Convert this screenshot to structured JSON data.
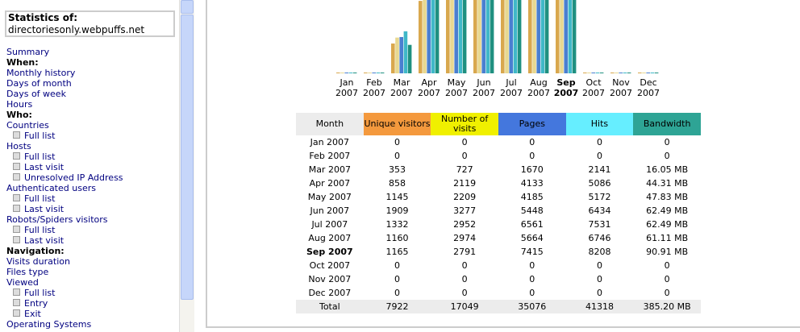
{
  "sidebar": {
    "stats_label": "Statistics of:",
    "site": "directoriesonly.webpuffs.net",
    "items": [
      {
        "link": "Summary"
      },
      {
        "heading": "When:"
      },
      {
        "link": "Monthly history"
      },
      {
        "link": "Days of month"
      },
      {
        "link": "Days of week"
      },
      {
        "link": "Hours"
      },
      {
        "heading": "Who:"
      },
      {
        "link": "Countries"
      },
      {
        "sublink": "Full list"
      },
      {
        "link": "Hosts"
      },
      {
        "sublink": "Full list"
      },
      {
        "sublink": "Last visit"
      },
      {
        "sublink": "Unresolved IP Address"
      },
      {
        "link": "Authenticated users"
      },
      {
        "sublink": "Full list"
      },
      {
        "sublink": "Last visit"
      },
      {
        "link": "Robots/Spiders visitors"
      },
      {
        "sublink": "Full list"
      },
      {
        "sublink": "Last visit"
      },
      {
        "heading": "Navigation:"
      },
      {
        "link": "Visits duration"
      },
      {
        "link": "Files type"
      },
      {
        "link": "Viewed"
      },
      {
        "sublink": "Full list"
      },
      {
        "sublink": "Entry"
      },
      {
        "sublink": "Exit"
      },
      {
        "link": "Operating Systems"
      }
    ]
  },
  "chart_data": {
    "type": "bar",
    "highlight": 8,
    "categories": [
      "Jan 2007",
      "Feb 2007",
      "Mar 2007",
      "Apr 2007",
      "May 2007",
      "Jun 2007",
      "Jul 2007",
      "Aug 2007",
      "Sep 2007",
      "Oct 2007",
      "Nov 2007",
      "Dec 2007"
    ],
    "series": [
      {
        "name": "Unique visitors",
        "color": "#d9a84e",
        "header_color": "#f4993d",
        "values": [
          0,
          0,
          353,
          858,
          1145,
          1909,
          1332,
          1160,
          1165,
          0,
          0,
          0
        ]
      },
      {
        "name": "Number of visits",
        "color": "#e8d890",
        "header_color": "#f0f000",
        "values": [
          0,
          0,
          727,
          2119,
          2209,
          3277,
          2952,
          2974,
          2791,
          0,
          0,
          0
        ]
      },
      {
        "name": "Pages",
        "color": "#4a7fd0",
        "header_color": "#4477dd",
        "values": [
          0,
          0,
          1670,
          4133,
          4185,
          5448,
          6561,
          5664,
          7415,
          0,
          0,
          0
        ]
      },
      {
        "name": "Hits",
        "color": "#40b8c8",
        "header_color": "#66eeff",
        "values": [
          0,
          0,
          2141,
          5086,
          5172,
          6434,
          7531,
          6746,
          8208,
          0,
          0,
          0
        ]
      },
      {
        "name": "Bandwidth",
        "color": "#1f9080",
        "header_color": "#2ea495",
        "values": [
          0,
          0,
          16.05,
          44.31,
          47.83,
          62.49,
          62.49,
          61.11,
          90.91,
          0,
          0,
          0
        ],
        "value_labels": [
          "0",
          "0",
          "16.05 MB",
          "44.31 MB",
          "47.83 MB",
          "62.49 MB",
          "62.49 MB",
          "61.11 MB",
          "90.91 MB",
          "0",
          "0",
          "0"
        ]
      }
    ]
  },
  "table": {
    "month_header": "Month",
    "total_label": "Total",
    "totals": [
      7922,
      17049,
      35076,
      41318,
      {
        "value": 385.2,
        "label": "385.20 MB"
      }
    ]
  }
}
